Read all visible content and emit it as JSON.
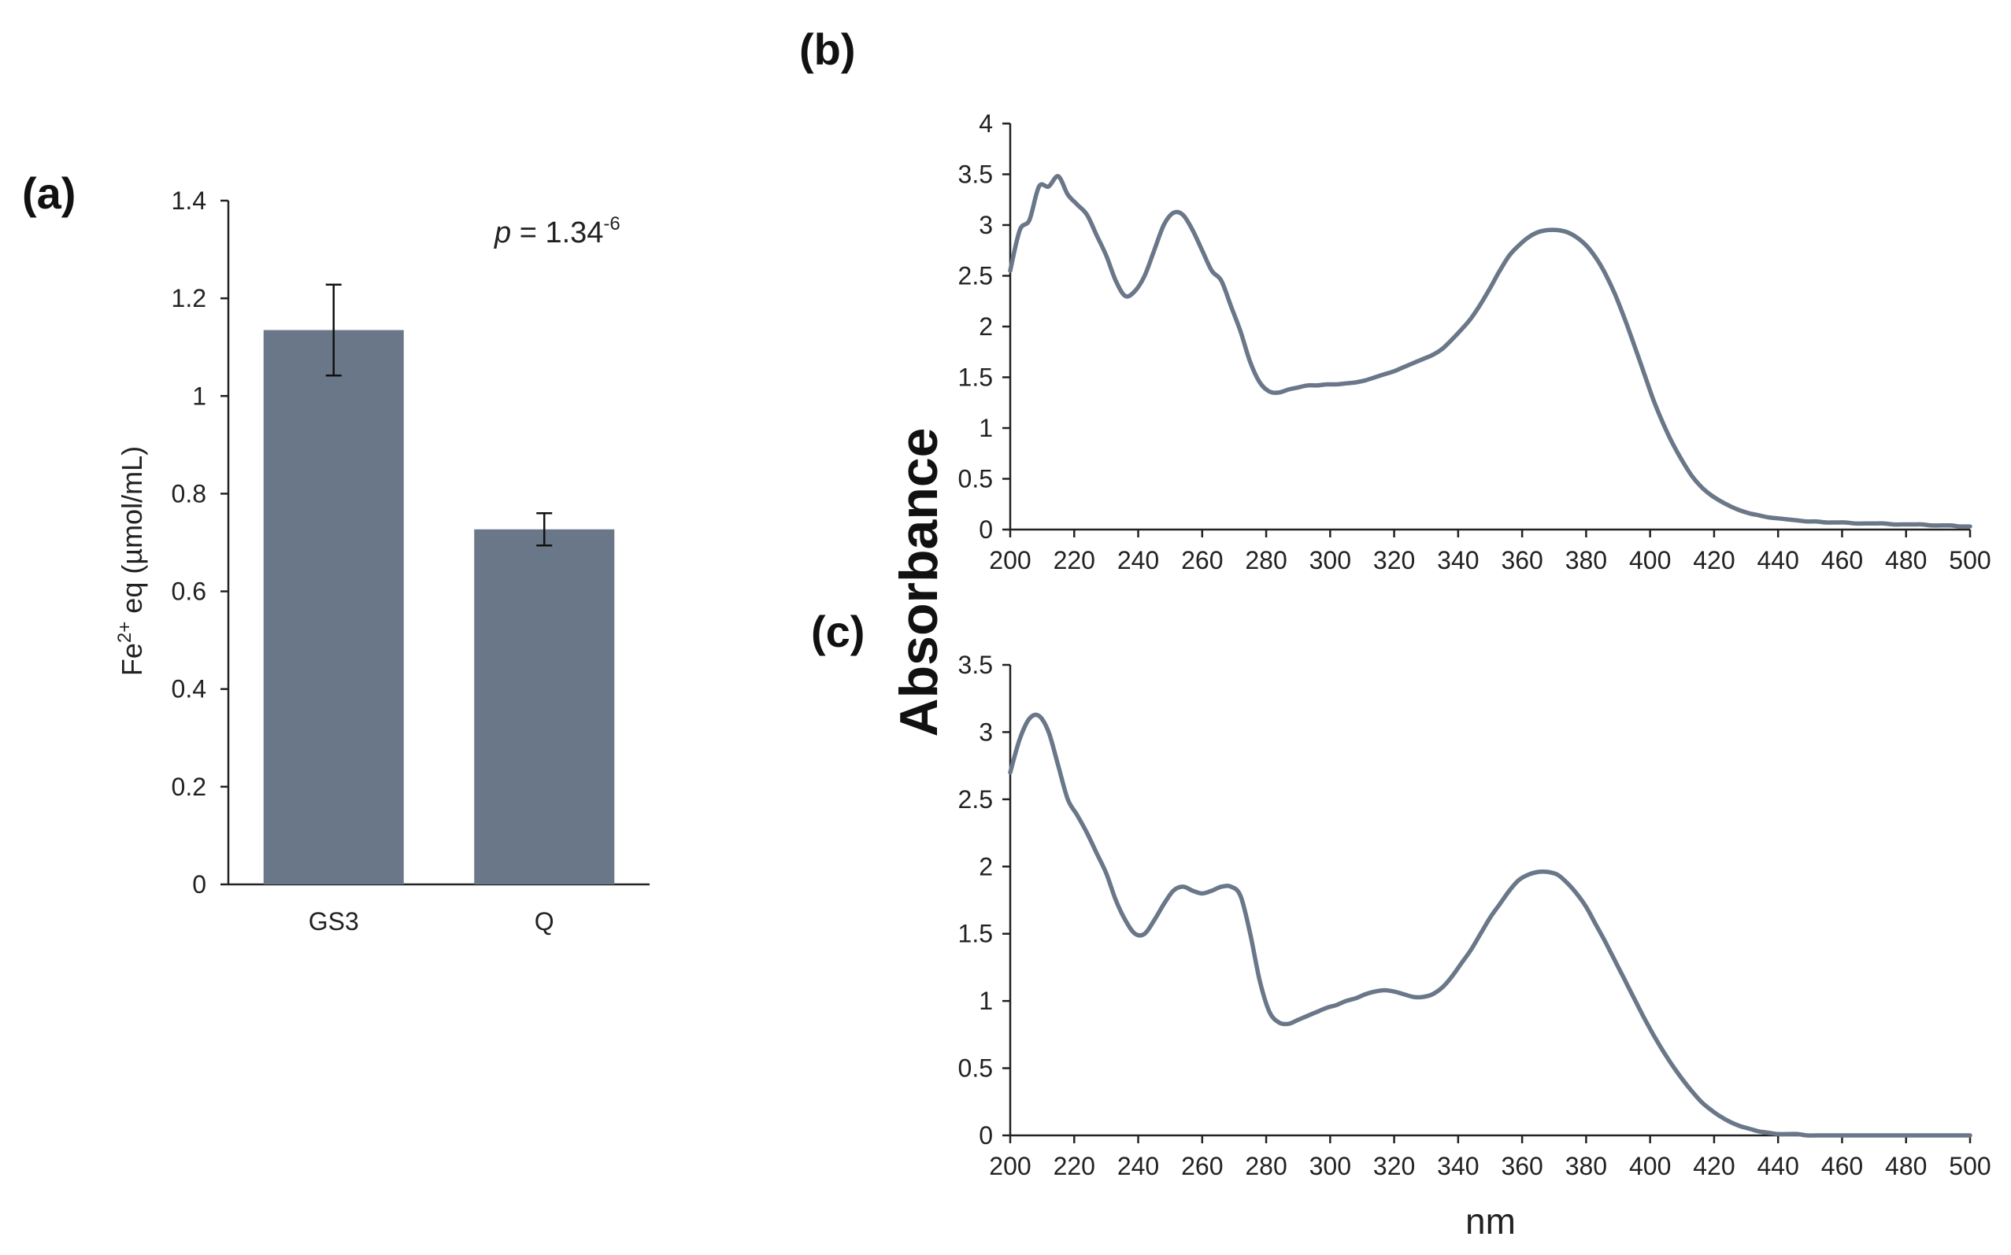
{
  "panel_labels": {
    "a": "(a)",
    "b": "(b)",
    "c": "(c)"
  },
  "shared_ylabel": "Absorbance",
  "shared_xlabel": "nm",
  "colors": {
    "bar": "#6A7789",
    "line": "#6A7789",
    "axis": "#222222"
  },
  "chart_data": [
    {
      "id": "a",
      "type": "bar",
      "categories": [
        "GS3",
        "Q"
      ],
      "values": [
        1.135,
        0.727
      ],
      "errors": [
        0.093,
        0.033
      ],
      "ylabel_base": "Fe",
      "ylabel_sup": "2+",
      "ylabel_rest": " eq (µmol/mL)",
      "ylim": [
        0,
        1.4
      ],
      "yticks": [
        0,
        0.2,
        0.4,
        0.6,
        0.8,
        1,
        1.2,
        1.4
      ],
      "annotation": {
        "p_symbol": "p",
        "eq": " = 1.34",
        "exp": "-6"
      }
    },
    {
      "id": "b",
      "type": "line",
      "xlim": [
        200,
        500
      ],
      "ylim": [
        0,
        4
      ],
      "xticks": [
        200,
        220,
        240,
        260,
        280,
        300,
        320,
        340,
        360,
        380,
        400,
        420,
        440,
        460,
        480,
        500
      ],
      "yticks": [
        0,
        0.5,
        1,
        1.5,
        2,
        2.5,
        3,
        3.5,
        4
      ],
      "x": [
        200,
        203,
        206,
        209,
        212,
        215,
        218,
        221,
        224,
        227,
        230,
        233,
        236,
        239,
        242,
        245,
        248,
        251,
        254,
        257,
        260,
        263,
        266,
        269,
        272,
        275,
        278,
        281,
        284,
        287,
        290,
        293,
        296,
        299,
        302,
        305,
        308,
        311,
        314,
        317,
        320,
        323,
        326,
        329,
        332,
        335,
        338,
        341,
        344,
        347,
        350,
        353,
        356,
        359,
        362,
        365,
        368,
        371,
        374,
        377,
        380,
        383,
        386,
        389,
        392,
        395,
        398,
        401,
        404,
        407,
        410,
        413,
        416,
        419,
        422,
        425,
        428,
        431,
        434,
        437,
        440,
        443,
        446,
        449,
        452,
        455,
        458,
        461,
        464,
        467,
        470,
        473,
        476,
        479,
        482,
        485,
        488,
        491,
        494,
        497,
        500
      ],
      "y": [
        2.55,
        2.95,
        3.05,
        3.38,
        3.38,
        3.48,
        3.3,
        3.2,
        3.1,
        2.9,
        2.7,
        2.45,
        2.3,
        2.35,
        2.5,
        2.75,
        3.0,
        3.12,
        3.1,
        2.95,
        2.75,
        2.55,
        2.45,
        2.2,
        1.95,
        1.65,
        1.45,
        1.36,
        1.35,
        1.38,
        1.4,
        1.42,
        1.42,
        1.43,
        1.43,
        1.44,
        1.45,
        1.47,
        1.5,
        1.53,
        1.56,
        1.6,
        1.64,
        1.68,
        1.72,
        1.78,
        1.87,
        1.97,
        2.08,
        2.22,
        2.38,
        2.55,
        2.7,
        2.8,
        2.88,
        2.93,
        2.95,
        2.95,
        2.93,
        2.88,
        2.8,
        2.68,
        2.52,
        2.32,
        2.08,
        1.82,
        1.55,
        1.28,
        1.05,
        0.85,
        0.68,
        0.53,
        0.42,
        0.34,
        0.28,
        0.23,
        0.19,
        0.16,
        0.14,
        0.12,
        0.11,
        0.1,
        0.09,
        0.08,
        0.08,
        0.07,
        0.07,
        0.07,
        0.06,
        0.06,
        0.06,
        0.06,
        0.05,
        0.05,
        0.05,
        0.05,
        0.04,
        0.04,
        0.04,
        0.03,
        0.03
      ]
    },
    {
      "id": "c",
      "type": "line",
      "xlim": [
        200,
        500
      ],
      "ylim": [
        0,
        3.5
      ],
      "xticks": [
        200,
        220,
        240,
        260,
        280,
        300,
        320,
        340,
        360,
        380,
        400,
        420,
        440,
        460,
        480,
        500
      ],
      "yticks": [
        0,
        0.5,
        1,
        1.5,
        2,
        2.5,
        3,
        3.5
      ],
      "x": [
        200,
        203,
        206,
        209,
        212,
        215,
        218,
        221,
        224,
        227,
        230,
        233,
        236,
        239,
        242,
        245,
        248,
        251,
        254,
        257,
        260,
        263,
        266,
        269,
        272,
        275,
        278,
        281,
        284,
        287,
        290,
        293,
        296,
        299,
        302,
        305,
        308,
        311,
        314,
        317,
        320,
        323,
        326,
        329,
        332,
        335,
        338,
        341,
        344,
        347,
        350,
        353,
        356,
        359,
        362,
        365,
        368,
        371,
        374,
        377,
        380,
        383,
        386,
        389,
        392,
        395,
        398,
        401,
        404,
        407,
        410,
        413,
        416,
        419,
        422,
        425,
        428,
        431,
        434,
        437,
        440,
        443,
        446,
        449,
        452,
        455,
        458,
        461,
        464,
        467,
        470,
        473,
        476,
        479,
        482,
        485,
        488,
        491,
        494,
        497,
        500
      ],
      "y": [
        2.7,
        2.95,
        3.1,
        3.12,
        3.0,
        2.75,
        2.5,
        2.38,
        2.25,
        2.1,
        1.95,
        1.75,
        1.6,
        1.5,
        1.5,
        1.6,
        1.72,
        1.82,
        1.85,
        1.82,
        1.8,
        1.82,
        1.85,
        1.85,
        1.78,
        1.5,
        1.15,
        0.92,
        0.84,
        0.83,
        0.86,
        0.89,
        0.92,
        0.95,
        0.97,
        1.0,
        1.02,
        1.05,
        1.07,
        1.08,
        1.07,
        1.05,
        1.03,
        1.03,
        1.05,
        1.1,
        1.18,
        1.28,
        1.38,
        1.5,
        1.62,
        1.72,
        1.82,
        1.9,
        1.94,
        1.96,
        1.96,
        1.94,
        1.88,
        1.8,
        1.7,
        1.57,
        1.44,
        1.3,
        1.16,
        1.02,
        0.88,
        0.75,
        0.63,
        0.52,
        0.42,
        0.33,
        0.25,
        0.19,
        0.14,
        0.1,
        0.07,
        0.05,
        0.03,
        0.02,
        0.01,
        0.01,
        0.01,
        0.0,
        0.0,
        0.0,
        0.0,
        0.0,
        0.0,
        0.0,
        0.0,
        0.0,
        0.0,
        0.0,
        0.0,
        0.0,
        0.0,
        0.0,
        0.0,
        0.0,
        0.0
      ]
    }
  ]
}
